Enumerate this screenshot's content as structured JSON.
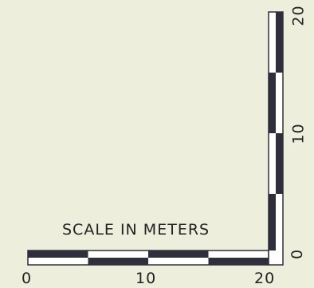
{
  "title": "SCALE IN METERS",
  "horizontal_ticks": [
    "0",
    "10",
    "20"
  ],
  "vertical_ticks": [
    "0",
    "10",
    "20"
  ],
  "colors": {
    "background": "#eeeedd",
    "ink": "#2e2e3c",
    "light": "#ffffff"
  },
  "scale": {
    "max": 20,
    "segment": 5
  }
}
